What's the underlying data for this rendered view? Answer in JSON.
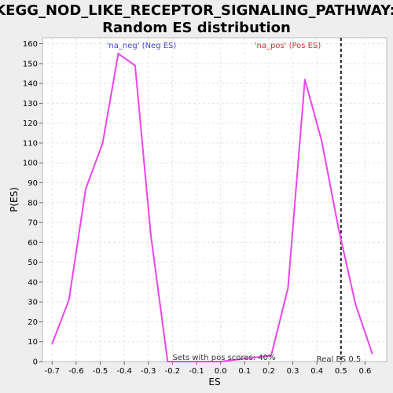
{
  "chart_data": {
    "type": "line",
    "title_line1": "KEGG_NOD_LIKE_RECEPTOR_SIGNALING_PATHWAY:",
    "title_line2": "Random ES distribution",
    "xlabel": "ES",
    "ylabel": "P(ES)",
    "xlim": [
      -0.74,
      0.69
    ],
    "ylim": [
      0,
      163
    ],
    "x_ticks": [
      -0.7,
      -0.6,
      -0.5,
      -0.4,
      -0.3,
      -0.2,
      -0.1,
      0.0,
      0.1,
      0.2,
      0.3,
      0.4,
      0.5,
      0.6
    ],
    "x_tick_labels": [
      "-0.7",
      "-0.6",
      "-0.5",
      "-0.4",
      "-0.3",
      "-0.2",
      "-0.1",
      "0.0",
      "0.1",
      "0.2",
      "0.3",
      "0.4",
      "0.5",
      "0.6"
    ],
    "y_ticks": [
      0,
      10,
      20,
      30,
      40,
      50,
      60,
      70,
      80,
      90,
      100,
      110,
      120,
      130,
      140,
      150,
      160
    ],
    "y_tick_labels": [
      "0",
      "10",
      "20",
      "30",
      "40",
      "50",
      "60",
      "70",
      "80",
      "90",
      "100",
      "110",
      "120",
      "130",
      "140",
      "150",
      "160"
    ],
    "grid": true,
    "line_color": "#ee44ee",
    "series": [
      {
        "x": [
          -0.7,
          -0.63,
          -0.56,
          -0.49,
          -0.425,
          -0.355,
          -0.29,
          -0.22,
          0.0,
          0.21,
          0.28,
          0.35,
          0.42,
          0.49,
          0.56,
          0.63
        ],
        "y": [
          9,
          31,
          87,
          110,
          155,
          149,
          64,
          0,
          0,
          3,
          37,
          142,
          111,
          67,
          29,
          4
        ]
      }
    ],
    "real_es": {
      "value": 0.5,
      "label": "Real ES 0.5",
      "color": "#222222"
    },
    "annotations": {
      "neg_label": "'na_neg' (Neg ES)",
      "neg_color": "#4444cc",
      "pos_label": "'na_pos' (Pos ES)",
      "pos_color": "#cc3333",
      "pos_scores": "Sets with pos scores: 40%"
    }
  }
}
